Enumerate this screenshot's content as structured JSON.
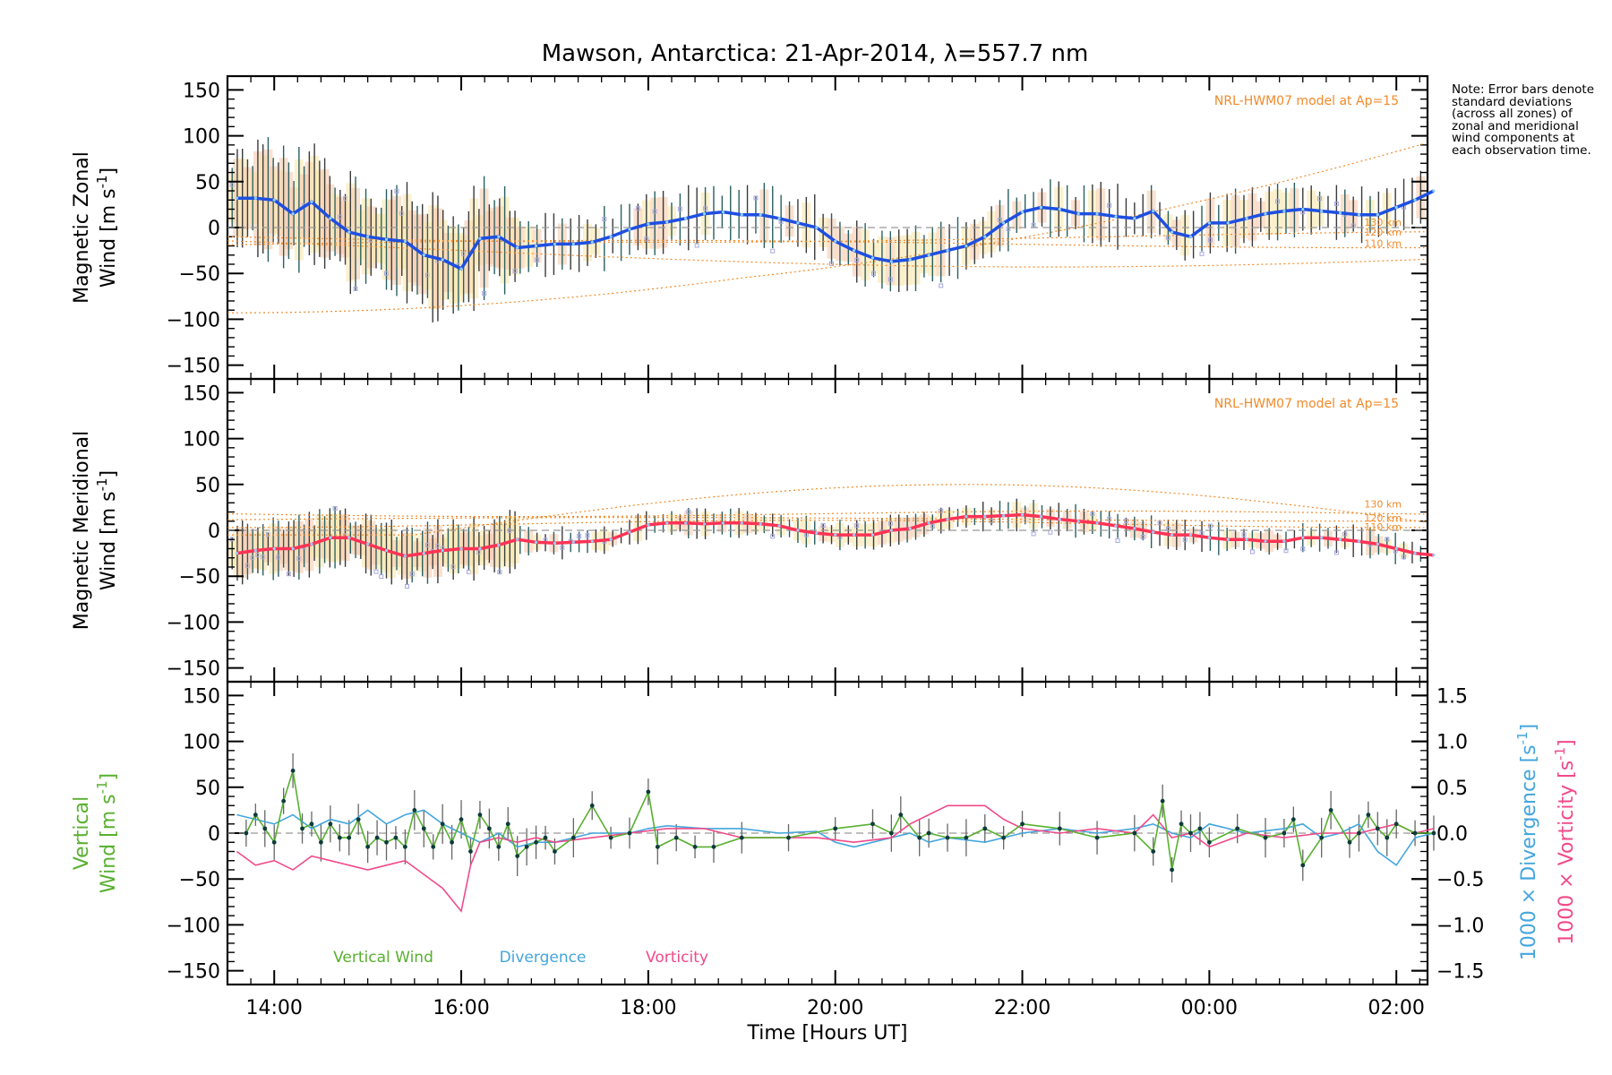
{
  "title": "Mawson, Antarctica: 21-Apr-2014, λ=557.7 nm",
  "note": "Note: Error bars denote standard deviations (across all zones) of zonal and meridional wind components at each observation time.",
  "colors": {
    "zonal": "#1e4fe0",
    "meridional": "#ff3355",
    "model": "#f08a2a",
    "vertical": "#58b030",
    "divergence": "#44a6dc",
    "vorticity": "#f04a8a",
    "errorbar": "#555555",
    "zone_box": "#a8a8e0"
  },
  "chart_data": [
    {
      "type": "line",
      "panel": "zonal",
      "ylabel": [
        "Magnetic Zonal",
        "Wind [m s",
        "-1",
        "]"
      ],
      "ylim": [
        -165,
        165
      ],
      "yticks": [
        -150,
        -100,
        -50,
        0,
        50,
        100,
        150
      ],
      "model_label": "NRL-HWM07 model at Ap=15",
      "model_altitude_labels": [
        "130 km",
        "120 km",
        "110 km"
      ],
      "series": [
        {
          "x": [
            13.6,
            13.8,
            14.0,
            14.2,
            14.4,
            14.6,
            14.8,
            15.0,
            15.2,
            15.4,
            15.6,
            15.8,
            16.0,
            16.2,
            16.4,
            16.6,
            16.8,
            17.0,
            17.2,
            17.4,
            17.6,
            17.8,
            18.0,
            18.2,
            18.4,
            18.6,
            18.8,
            19.0,
            19.2,
            19.4,
            19.6,
            19.8,
            20.0,
            20.2,
            20.4,
            20.6,
            20.8,
            21.0,
            21.2,
            21.4,
            21.6,
            21.8,
            22.0,
            22.2,
            22.4,
            22.6,
            22.8,
            23.0,
            23.2,
            23.4,
            23.6,
            23.8,
            24.0,
            24.2,
            24.4,
            24.6,
            24.8,
            25.0,
            25.2,
            25.4,
            25.6,
            25.8,
            26.0,
            26.2,
            26.4
          ],
          "y": [
            32,
            32,
            30,
            15,
            28,
            10,
            -5,
            -10,
            -13,
            -15,
            -30,
            -35,
            -45,
            -12,
            -10,
            -22,
            -20,
            -18,
            -18,
            -16,
            -10,
            -2,
            4,
            6,
            10,
            15,
            17,
            14,
            14,
            10,
            5,
            0,
            -15,
            -25,
            -33,
            -37,
            -35,
            -30,
            -25,
            -20,
            -10,
            5,
            17,
            22,
            20,
            15,
            15,
            12,
            10,
            18,
            -5,
            -10,
            5,
            5,
            10,
            15,
            18,
            20,
            18,
            16,
            14,
            14,
            22,
            30,
            40
          ]
        }
      ]
    },
    {
      "type": "line",
      "panel": "meridional",
      "ylabel": [
        "Magnetic Meridional",
        "Wind [m s",
        "-1",
        "]"
      ],
      "ylim": [
        -165,
        165
      ],
      "yticks": [
        -150,
        -100,
        -50,
        0,
        50,
        100,
        150
      ],
      "model_label": "NRL-HWM07 model at Ap=15",
      "model_altitude_labels": [
        "130 km",
        "120 km",
        "110 km"
      ],
      "series": [
        {
          "x": [
            13.6,
            13.8,
            14.0,
            14.2,
            14.4,
            14.6,
            14.8,
            15.0,
            15.2,
            15.4,
            15.6,
            15.8,
            16.0,
            16.2,
            16.4,
            16.6,
            16.8,
            17.0,
            17.2,
            17.4,
            17.6,
            17.8,
            18.0,
            18.2,
            18.4,
            18.6,
            18.8,
            19.0,
            19.2,
            19.4,
            19.6,
            19.8,
            20.0,
            20.2,
            20.4,
            20.6,
            20.8,
            21.0,
            21.2,
            21.4,
            21.6,
            21.8,
            22.0,
            22.2,
            22.4,
            22.6,
            22.8,
            23.0,
            23.2,
            23.4,
            23.6,
            23.8,
            24.0,
            24.2,
            24.4,
            24.6,
            24.8,
            25.0,
            25.2,
            25.4,
            25.6,
            25.8,
            26.0,
            26.2,
            26.4
          ],
          "y": [
            -25,
            -22,
            -20,
            -20,
            -15,
            -8,
            -8,
            -15,
            -22,
            -28,
            -25,
            -22,
            -20,
            -20,
            -16,
            -10,
            -13,
            -14,
            -13,
            -12,
            -10,
            -2,
            6,
            8,
            8,
            7,
            8,
            8,
            7,
            5,
            0,
            -3,
            -5,
            -5,
            -5,
            0,
            2,
            8,
            12,
            15,
            15,
            16,
            17,
            15,
            12,
            10,
            8,
            5,
            2,
            -2,
            -5,
            -5,
            -8,
            -10,
            -10,
            -12,
            -12,
            -8,
            -8,
            -10,
            -12,
            -15,
            -20,
            -25,
            -27
          ]
        }
      ]
    },
    {
      "type": "line",
      "panel": "vertical",
      "ylabel_left": [
        "Vertical",
        "Wind [m s",
        "-1",
        "]"
      ],
      "ylabel_right_divergence": [
        "1000 × Divergence [s",
        "-1",
        "]"
      ],
      "ylabel_right_vorticity": [
        "1000 × Vorticity [s",
        "-1",
        "]"
      ],
      "ylim": [
        -165,
        165
      ],
      "yticks": [
        -150,
        -100,
        -50,
        0,
        50,
        100,
        150
      ],
      "ylim_right": [
        -1.65,
        1.65
      ],
      "yticks_right": [
        "−1.5",
        "−1.0",
        "−0.5",
        "0.0",
        "0.5",
        "1.0",
        "1.5"
      ],
      "legend": [
        "Vertical Wind",
        "Divergence",
        "Vorticity"
      ],
      "series": [
        {
          "name": "Vertical Wind",
          "x": [
            13.7,
            13.8,
            13.9,
            14.0,
            14.1,
            14.2,
            14.3,
            14.4,
            14.5,
            14.6,
            14.7,
            14.8,
            14.9,
            15.0,
            15.1,
            15.2,
            15.3,
            15.4,
            15.5,
            15.6,
            15.7,
            15.8,
            15.9,
            16.0,
            16.1,
            16.2,
            16.3,
            16.4,
            16.5,
            16.6,
            16.7,
            16.8,
            16.9,
            17.0,
            17.2,
            17.4,
            17.6,
            17.8,
            18.0,
            18.1,
            18.3,
            18.5,
            18.7,
            19.0,
            19.5,
            20.0,
            20.4,
            20.6,
            20.7,
            20.9,
            21.0,
            21.2,
            21.4,
            21.6,
            21.8,
            22.0,
            22.4,
            22.8,
            23.2,
            23.4,
            23.5,
            23.6,
            23.7,
            23.8,
            23.9,
            24.0,
            24.3,
            24.6,
            24.8,
            24.9,
            25.0,
            25.2,
            25.3,
            25.5,
            25.6,
            25.7,
            25.8,
            25.9,
            26.0,
            26.2,
            26.4
          ],
          "y": [
            0,
            20,
            5,
            -10,
            35,
            68,
            5,
            10,
            -10,
            10,
            -5,
            -5,
            15,
            -15,
            -5,
            -10,
            -5,
            -15,
            25,
            5,
            -15,
            10,
            -10,
            15,
            -20,
            20,
            5,
            -15,
            10,
            -25,
            -15,
            -10,
            -5,
            -20,
            -5,
            30,
            -5,
            0,
            45,
            -15,
            -5,
            -15,
            -15,
            -5,
            -5,
            5,
            10,
            0,
            20,
            -5,
            0,
            -5,
            -5,
            5,
            -5,
            10,
            5,
            -5,
            0,
            -20,
            35,
            -40,
            10,
            0,
            5,
            -10,
            5,
            -5,
            0,
            15,
            -35,
            -5,
            25,
            -10,
            0,
            20,
            5,
            -5,
            10,
            0,
            0
          ]
        },
        {
          "name": "Divergence",
          "x": [
            13.6,
            13.8,
            14.0,
            14.2,
            14.4,
            14.6,
            14.8,
            15.0,
            15.2,
            15.4,
            15.6,
            15.8,
            16.0,
            16.2,
            16.4,
            16.6,
            16.8,
            17.0,
            17.4,
            17.8,
            18.0,
            18.2,
            18.6,
            19.0,
            19.4,
            19.8,
            20.0,
            20.2,
            20.4,
            20.6,
            20.8,
            21.0,
            21.2,
            21.6,
            22.0,
            22.4,
            22.8,
            23.2,
            23.4,
            23.6,
            23.8,
            24.0,
            24.4,
            24.8,
            25.0,
            25.2,
            25.4,
            25.6,
            25.8,
            26.0,
            26.2,
            26.4
          ],
          "y": [
            0.2,
            0.15,
            0.1,
            0.2,
            0.05,
            0.15,
            0.1,
            0.25,
            0.1,
            0.2,
            0.25,
            0.1,
            0.0,
            -0.1,
            0.0,
            -0.15,
            -0.1,
            -0.1,
            0.0,
            0.0,
            0.05,
            0.08,
            0.05,
            0.05,
            0.0,
            0.02,
            -0.1,
            -0.15,
            -0.1,
            -0.05,
            0.0,
            -0.1,
            -0.05,
            -0.1,
            0.0,
            0.05,
            0.0,
            0.05,
            0.1,
            0.0,
            -0.05,
            0.1,
            0.0,
            0.05,
            0.1,
            -0.05,
            0.0,
            0.1,
            -0.2,
            -0.35,
            -0.05,
            0.0
          ]
        },
        {
          "name": "Vorticity",
          "x": [
            13.6,
            13.8,
            14.0,
            14.2,
            14.4,
            14.6,
            14.8,
            15.0,
            15.2,
            15.4,
            15.6,
            15.8,
            16.0,
            16.1,
            16.2,
            16.4,
            16.6,
            16.8,
            17.0,
            17.4,
            17.8,
            18.2,
            18.6,
            19.0,
            19.4,
            19.8,
            20.2,
            20.6,
            20.8,
            21.0,
            21.2,
            21.4,
            21.6,
            21.8,
            22.0,
            22.4,
            22.8,
            23.2,
            23.4,
            23.6,
            23.8,
            24.0,
            24.4,
            24.8,
            25.2,
            25.6,
            26.0,
            26.2,
            26.4
          ],
          "y": [
            -0.2,
            -0.35,
            -0.3,
            -0.4,
            -0.25,
            -0.3,
            -0.35,
            -0.4,
            -0.35,
            -0.3,
            -0.45,
            -0.6,
            -0.85,
            -0.35,
            -0.1,
            -0.05,
            -0.1,
            -0.05,
            -0.1,
            -0.05,
            0.0,
            0.05,
            0.05,
            -0.05,
            -0.05,
            -0.05,
            -0.1,
            -0.05,
            0.1,
            0.2,
            0.3,
            0.3,
            0.3,
            0.15,
            0.05,
            0.0,
            0.05,
            0.0,
            0.2,
            -0.05,
            0.0,
            -0.15,
            0.0,
            -0.05,
            0.0,
            0.0,
            0.1,
            0.0,
            0.05
          ]
        }
      ]
    }
  ],
  "x_axis": {
    "label": "Time [Hours UT]",
    "range": [
      "13:30",
      "02:20"
    ],
    "ticks": [
      {
        "hour": 14,
        "label": "14:00"
      },
      {
        "hour": 16,
        "label": "16:00"
      },
      {
        "hour": 18,
        "label": "18:00"
      },
      {
        "hour": 20,
        "label": "20:00"
      },
      {
        "hour": 22,
        "label": "22:00"
      },
      {
        "hour": 24,
        "label": "00:00"
      },
      {
        "hour": 26,
        "label": "02:00"
      }
    ]
  }
}
